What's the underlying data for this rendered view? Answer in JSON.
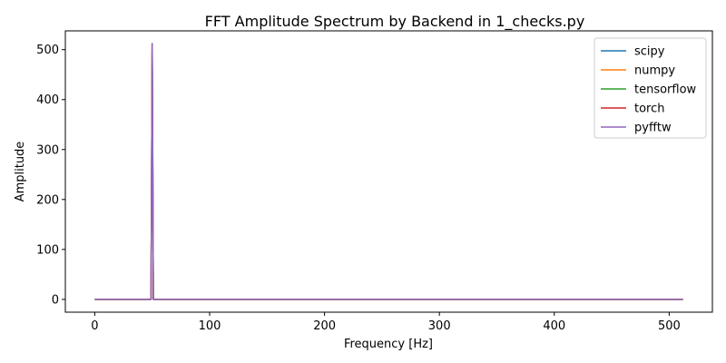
{
  "chart_data": {
    "type": "line",
    "title": "FFT Amplitude Spectrum by Backend in 1_checks.py",
    "xlabel": "Frequency [Hz]",
    "ylabel": "Amplitude",
    "xlim": [
      -25.6,
      537.6
    ],
    "ylim": [
      -25.6,
      537.6
    ],
    "xticks": [
      0,
      100,
      200,
      300,
      400,
      500
    ],
    "yticks": [
      0,
      100,
      200,
      300,
      400,
      500
    ],
    "grid": false,
    "legend_position": "top-right",
    "x": [
      0,
      49,
      50,
      51,
      512
    ],
    "series": [
      {
        "name": "scipy",
        "color": "#1f77b4",
        "values": [
          0,
          0,
          512,
          0,
          0
        ]
      },
      {
        "name": "numpy",
        "color": "#ff7f0e",
        "values": [
          0,
          0,
          512,
          0,
          0
        ]
      },
      {
        "name": "tensorflow",
        "color": "#2ca02c",
        "values": [
          0,
          0,
          512,
          0,
          0
        ]
      },
      {
        "name": "torch",
        "color": "#d62728",
        "values": [
          0,
          0,
          512,
          0,
          0
        ]
      },
      {
        "name": "pyfftw",
        "color": "#9467bd",
        "values": [
          0,
          0,
          512,
          0,
          0
        ]
      }
    ]
  }
}
